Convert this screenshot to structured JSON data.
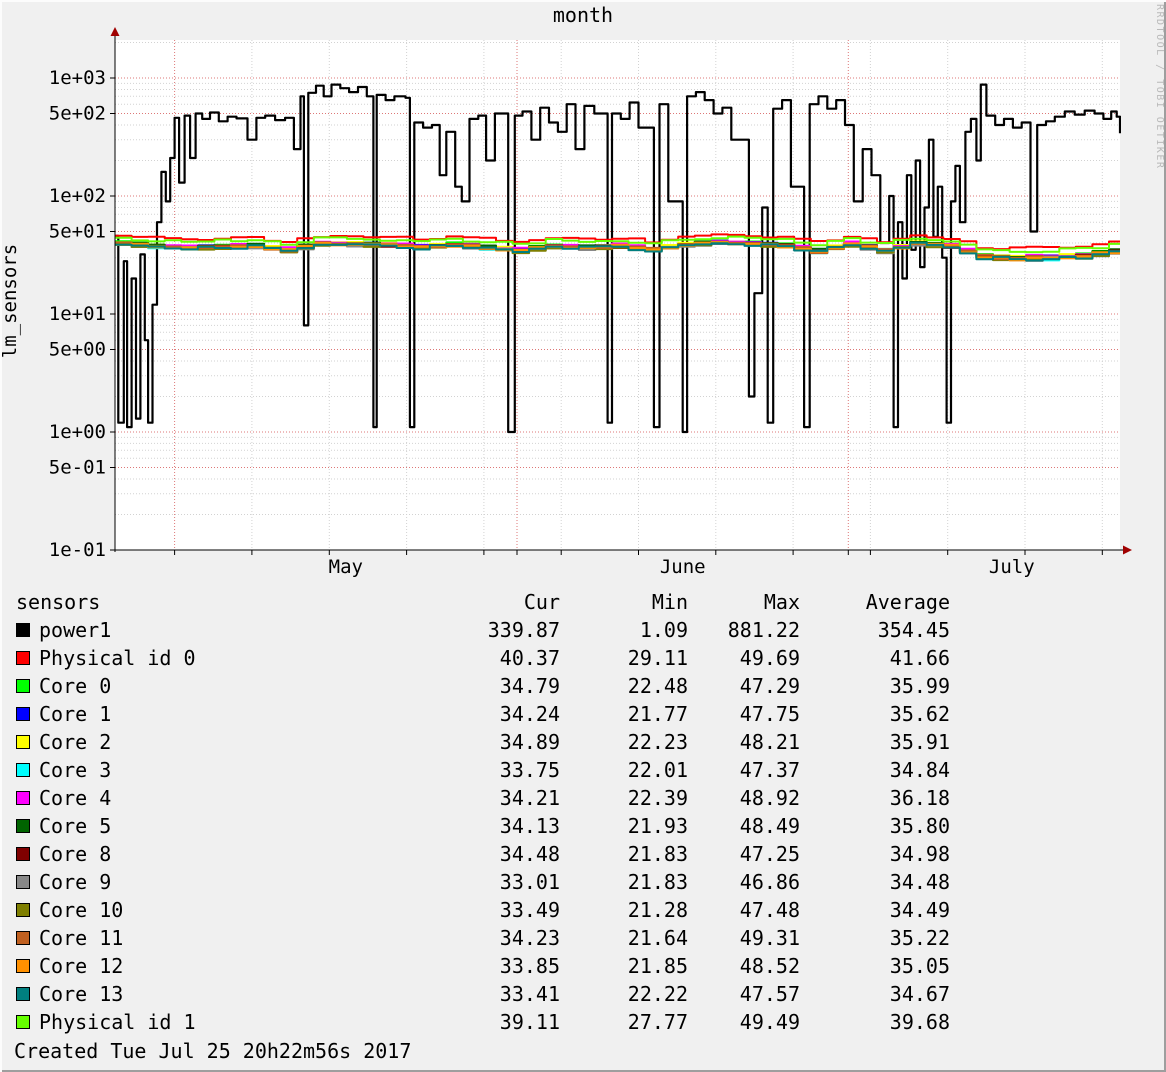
{
  "title": "month",
  "y_axis_label": "lm_sensors",
  "watermark": "RRDTOOL / TOBI OETIKER",
  "footer": "Created Tue Jul 25 20h22m56s 2017",
  "colors": {
    "background": "#f0f0f0",
    "plot_background": "#ffffff",
    "grid_minor": "#d2d2d2",
    "grid_major": "#dd7777",
    "axis": "#000000",
    "arrow": "#a00000",
    "watermark": "#b9b9b9"
  },
  "legend": {
    "header_name": "sensors",
    "cols": [
      "Cur",
      "Min",
      "Max",
      "Average"
    ]
  },
  "chart_data": {
    "type": "line",
    "y_scale": "log",
    "ylim": [
      0.1,
      2100
    ],
    "x_span_days": 91,
    "grid": true,
    "y_ticks": [
      {
        "label": "1e+03",
        "value": 1000
      },
      {
        "label": "5e+02",
        "value": 500
      },
      {
        "label": "1e+02",
        "value": 100
      },
      {
        "label": "5e+01",
        "value": 50
      },
      {
        "label": "1e+01",
        "value": 10
      },
      {
        "label": "5e+00",
        "value": 5
      },
      {
        "label": "1e+00",
        "value": 1
      },
      {
        "label": "5e-01",
        "value": 0.5
      },
      {
        "label": "1e-01",
        "value": 0.1
      }
    ],
    "x_ticks": [
      {
        "label": "May",
        "day": 20.9
      },
      {
        "label": "June",
        "day": 51.4
      },
      {
        "label": "July",
        "day": 81.2
      }
    ],
    "month_line_days": [
      5.4,
      36.4,
      66.4
    ],
    "week_line_days": [
      12.4,
      19.4,
      26.4,
      33.4,
      40.4,
      47.4,
      54.4,
      61.4,
      68.4,
      75.4,
      82.4,
      89.4
    ],
    "series": [
      {
        "name": "power1",
        "color": "#000000",
        "type": "steps",
        "cur": "339.87",
        "min": "1.09",
        "max": "881.22",
        "avg": "354.45"
      },
      {
        "name": "Physical id 0",
        "color": "#ff0000",
        "offset": 0.0,
        "cur": "40.37",
        "min": "29.11",
        "max": "49.69",
        "avg": "41.66"
      },
      {
        "name": "Core 0",
        "color": "#00ff00",
        "offset": -5.7,
        "cur": "34.79",
        "min": "22.48",
        "max": "47.29",
        "avg": "35.99"
      },
      {
        "name": "Core 1",
        "color": "#0000ff",
        "offset": -6.0,
        "cur": "34.24",
        "min": "21.77",
        "max": "47.75",
        "avg": "35.62"
      },
      {
        "name": "Core 2",
        "color": "#ffff00",
        "offset": -5.8,
        "cur": "34.89",
        "min": "22.23",
        "max": "48.21",
        "avg": "35.91"
      },
      {
        "name": "Core 3",
        "color": "#00ffff",
        "offset": -6.8,
        "cur": "33.75",
        "min": "22.01",
        "max": "47.37",
        "avg": "34.84"
      },
      {
        "name": "Core 4",
        "color": "#ff00ff",
        "offset": -5.5,
        "cur": "34.21",
        "min": "22.39",
        "max": "48.92",
        "avg": "36.18"
      },
      {
        "name": "Core 5",
        "color": "#006400",
        "offset": -5.9,
        "cur": "34.13",
        "min": "21.93",
        "max": "48.49",
        "avg": "35.80"
      },
      {
        "name": "Core 8",
        "color": "#7f0000",
        "offset": -6.7,
        "cur": "34.48",
        "min": "21.83",
        "max": "47.25",
        "avg": "34.98"
      },
      {
        "name": "Core 9",
        "color": "#888888",
        "offset": -7.2,
        "cur": "33.01",
        "min": "21.83",
        "max": "46.86",
        "avg": "34.48"
      },
      {
        "name": "Core 10",
        "color": "#7f7f00",
        "offset": -7.2,
        "cur": "33.49",
        "min": "21.28",
        "max": "47.48",
        "avg": "34.49"
      },
      {
        "name": "Core 11",
        "color": "#c06020",
        "offset": -6.4,
        "cur": "34.23",
        "min": "21.64",
        "max": "49.31",
        "avg": "35.22"
      },
      {
        "name": "Core 12",
        "color": "#ff9000",
        "offset": -6.6,
        "cur": "33.85",
        "min": "21.85",
        "max": "48.52",
        "avg": "35.05"
      },
      {
        "name": "Core 13",
        "color": "#007f7f",
        "offset": -7.0,
        "cur": "33.41",
        "min": "22.22",
        "max": "47.57",
        "avg": "34.67"
      },
      {
        "name": "Physical id 1",
        "color": "#66ff00",
        "offset": -2.0,
        "cur": "39.11",
        "min": "27.77",
        "max": "49.49",
        "avg": "39.68"
      }
    ],
    "power1_steps": [
      [
        0,
        46
      ],
      [
        0.3,
        1.2
      ],
      [
        0.8,
        28
      ],
      [
        1.1,
        1.1
      ],
      [
        1.5,
        20
      ],
      [
        1.9,
        1.3
      ],
      [
        2.3,
        32
      ],
      [
        2.7,
        6
      ],
      [
        3,
        1.2
      ],
      [
        3.4,
        12
      ],
      [
        3.8,
        60
      ],
      [
        4.2,
        160
      ],
      [
        4.6,
        90
      ],
      [
        5,
        210
      ],
      [
        5.4,
        460
      ],
      [
        5.8,
        130
      ],
      [
        6.3,
        480
      ],
      [
        6.8,
        210
      ],
      [
        7.3,
        500
      ],
      [
        7.9,
        450
      ],
      [
        8.6,
        510
      ],
      [
        9.4,
        430
      ],
      [
        10.2,
        470
      ],
      [
        11,
        455
      ],
      [
        12,
        300
      ],
      [
        12.8,
        460
      ],
      [
        13.6,
        480
      ],
      [
        14.5,
        440
      ],
      [
        15.4,
        460
      ],
      [
        16.2,
        250
      ],
      [
        16.8,
        700
      ],
      [
        17.1,
        8
      ],
      [
        17.5,
        750
      ],
      [
        18.2,
        860
      ],
      [
        18.9,
        700
      ],
      [
        19.6,
        880
      ],
      [
        20.4,
        820
      ],
      [
        21.2,
        760
      ],
      [
        22,
        840
      ],
      [
        22.8,
        700
      ],
      [
        23.4,
        1.1
      ],
      [
        23.7,
        720
      ],
      [
        24.5,
        650
      ],
      [
        25.3,
        700
      ],
      [
        26.3,
        680
      ],
      [
        26.7,
        1.1
      ],
      [
        27.1,
        420
      ],
      [
        27.9,
        380
      ],
      [
        28.7,
        400
      ],
      [
        29.4,
        150
      ],
      [
        30,
        350
      ],
      [
        30.8,
        120
      ],
      [
        31.4,
        90
      ],
      [
        32.1,
        450
      ],
      [
        32.9,
        480
      ],
      [
        33.6,
        200
      ],
      [
        34.4,
        500
      ],
      [
        35.6,
        1
      ],
      [
        36.2,
        480
      ],
      [
        36.9,
        520
      ],
      [
        37.7,
        300
      ],
      [
        38.5,
        560
      ],
      [
        39.3,
        420
      ],
      [
        40.1,
        350
      ],
      [
        40.9,
        600
      ],
      [
        41.7,
        250
      ],
      [
        42.5,
        580
      ],
      [
        43.4,
        500
      ],
      [
        44.6,
        1.2
      ],
      [
        45,
        500
      ],
      [
        45.8,
        450
      ],
      [
        46.6,
        620
      ],
      [
        47.4,
        380
      ],
      [
        48.8,
        1.1
      ],
      [
        49.3,
        600
      ],
      [
        50.1,
        90
      ],
      [
        51.4,
        1
      ],
      [
        51.8,
        700
      ],
      [
        52.6,
        760
      ],
      [
        53.4,
        650
      ],
      [
        54.2,
        500
      ],
      [
        55,
        560
      ],
      [
        55.8,
        300
      ],
      [
        57.4,
        2
      ],
      [
        57.9,
        15
      ],
      [
        58.6,
        80
      ],
      [
        59.1,
        1.2
      ],
      [
        59.6,
        550
      ],
      [
        60.4,
        650
      ],
      [
        61.2,
        120
      ],
      [
        62.4,
        1.1
      ],
      [
        62.9,
        600
      ],
      [
        63.7,
        700
      ],
      [
        64.5,
        550
      ],
      [
        65.3,
        650
      ],
      [
        66.1,
        400
      ],
      [
        66.9,
        90
      ],
      [
        67.7,
        250
      ],
      [
        68.5,
        150
      ],
      [
        69.3,
        40
      ],
      [
        70.1,
        100
      ],
      [
        70.5,
        1.1
      ],
      [
        70.9,
        60
      ],
      [
        71.3,
        20
      ],
      [
        71.7,
        150
      ],
      [
        72.1,
        35
      ],
      [
        72.5,
        200
      ],
      [
        72.9,
        25
      ],
      [
        73.3,
        80
      ],
      [
        73.7,
        300
      ],
      [
        74.1,
        45
      ],
      [
        74.5,
        120
      ],
      [
        74.9,
        30
      ],
      [
        75.3,
        1.2
      ],
      [
        75.7,
        90
      ],
      [
        76.1,
        180
      ],
      [
        76.5,
        60
      ],
      [
        77,
        350
      ],
      [
        77.5,
        450
      ],
      [
        78,
        200
      ],
      [
        78.4,
        880
      ],
      [
        78.9,
        480
      ],
      [
        79.7,
        400
      ],
      [
        80.5,
        450
      ],
      [
        81.3,
        380
      ],
      [
        82.1,
        420
      ],
      [
        82.9,
        50
      ],
      [
        83.5,
        400
      ],
      [
        84.3,
        430
      ],
      [
        85.1,
        470
      ],
      [
        86,
        520
      ],
      [
        86.9,
        490
      ],
      [
        87.8,
        530
      ],
      [
        88.7,
        500
      ],
      [
        89.5,
        450
      ],
      [
        90.2,
        520
      ],
      [
        90.7,
        470
      ],
      [
        91,
        340
      ]
    ],
    "temp_shape_days": [
      0,
      3,
      6,
      9,
      12,
      15,
      18,
      21,
      24,
      27,
      30,
      33,
      36,
      39,
      42,
      45,
      48,
      51,
      54,
      57,
      60,
      63,
      66,
      69,
      72,
      75,
      78,
      81,
      84,
      87,
      90
    ],
    "temp_shape": [
      46,
      44,
      43,
      43.5,
      44,
      41,
      46,
      45.5,
      45,
      43.5,
      45,
      43,
      41,
      44,
      43,
      44,
      41.5,
      45,
      47,
      46,
      44.5,
      40.5,
      45.5,
      41,
      46,
      44,
      37,
      36,
      36.5,
      37.5,
      40.4
    ]
  }
}
